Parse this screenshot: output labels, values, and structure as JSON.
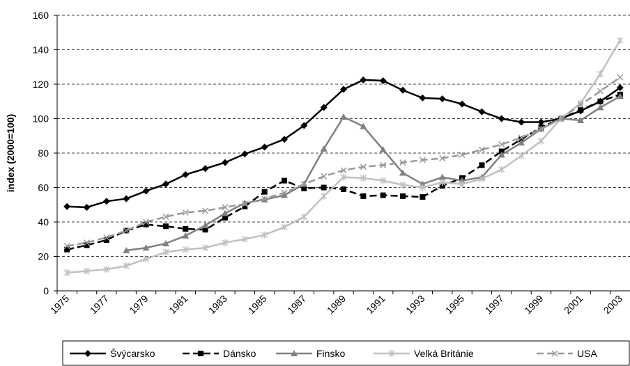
{
  "chart_data": {
    "type": "line",
    "y_label": "index (2000=100)",
    "categories": [
      "1975",
      null,
      "1977",
      null,
      "1979",
      null,
      "1981",
      null,
      "1983",
      null,
      "1985",
      null,
      "1987",
      null,
      "1989",
      null,
      "1991",
      null,
      "1993",
      null,
      "1995",
      null,
      "1997",
      null,
      "1999",
      null,
      "2001",
      null,
      "2003"
    ],
    "ylim": [
      0,
      160
    ],
    "yticks": [
      0,
      20,
      40,
      60,
      80,
      100,
      120,
      140,
      160
    ],
    "grid": true,
    "legend": "bottom",
    "series": [
      {
        "name": "Švýcarsko",
        "color": "#000000",
        "dash": false,
        "marker": "diamond",
        "values": [
          49,
          48.5,
          52,
          53.5,
          58,
          62,
          67.5,
          71,
          74.5,
          79.5,
          83.5,
          88,
          96,
          106.5,
          117,
          122.5,
          122,
          116.5,
          112,
          111.5,
          108.5,
          104,
          100,
          98,
          98,
          100,
          104.5,
          110,
          118
        ]
      },
      {
        "name": "Dánsko",
        "color": "#000000",
        "dash": true,
        "marker": "square",
        "values": [
          24,
          26.5,
          29.5,
          35,
          38.5,
          37.5,
          36,
          35.5,
          42.5,
          49,
          57.5,
          64,
          59.5,
          60,
          59,
          55,
          55.5,
          55,
          54.5,
          61,
          65.5,
          73,
          81,
          88,
          95,
          100,
          105,
          110,
          114
        ]
      },
      {
        "name": "Finsko",
        "color": "#808080",
        "dash": false,
        "marker": "triangle",
        "values": [
          null,
          null,
          null,
          23.5,
          25,
          27.5,
          32,
          38,
          45,
          51,
          53,
          55.5,
          62,
          82.5,
          101,
          95.5,
          82,
          68.5,
          62,
          66,
          64,
          66,
          79,
          86,
          94,
          100,
          99,
          106.5,
          113
        ]
      },
      {
        "name": "Velká Británie",
        "color": "#c0c0c0",
        "dash": false,
        "marker": "star",
        "values": [
          10.5,
          11.5,
          12.5,
          14.5,
          18.5,
          22.5,
          24,
          25,
          28,
          30,
          32.5,
          37,
          43,
          55,
          66,
          65.5,
          64,
          61.5,
          60,
          63,
          62,
          65,
          70.5,
          78.5,
          87,
          100,
          109,
          126,
          145.5
        ]
      },
      {
        "name": "USA",
        "color": "#999999",
        "dash": true,
        "marker": "cross",
        "values": [
          26,
          28,
          31,
          35,
          40,
          43,
          45.5,
          46.5,
          48.5,
          50.5,
          53.5,
          57,
          62,
          66.5,
          70,
          72,
          73,
          74.5,
          76,
          77,
          79,
          82,
          85,
          89,
          94,
          100,
          108,
          116,
          124
        ]
      }
    ]
  }
}
